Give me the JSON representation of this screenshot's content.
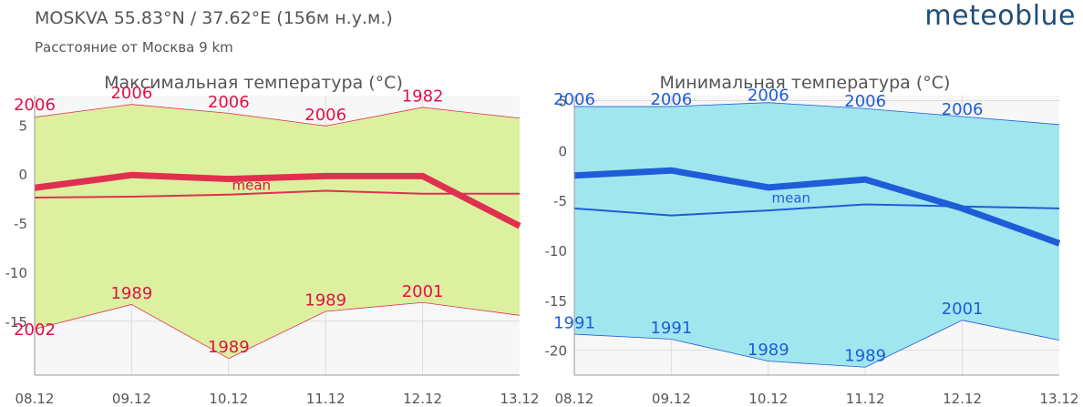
{
  "header": {
    "title": "MOSKVA  55.83°N / 37.62°E (156м н.у.м.)",
    "subtitle": "Расстояние от Москва  9 km",
    "logo": "meteoblue"
  },
  "chart_data": [
    {
      "type": "area",
      "title": "Максимальная температура (°C)",
      "categories": [
        "08.12",
        "09.12",
        "10.12",
        "11.12",
        "12.12",
        "13.12"
      ],
      "yticks": [
        5,
        0,
        -5,
        -10,
        -15
      ],
      "ylim": [
        -20.5,
        8
      ],
      "fill_color": "#dcf0a0",
      "line_color": "#e03050",
      "label_color": "#e0104a",
      "upper": [
        5.8,
        7.1,
        6.2,
        4.9,
        6.8,
        5.7
      ],
      "lower": [
        -15.8,
        -13.3,
        -18.8,
        -14.0,
        -13.1,
        -14.4
      ],
      "mean": [
        -2.4,
        -2.3,
        -2.1,
        -1.7,
        -2.0,
        -2.0
      ],
      "actual": [
        -1.4,
        -0.1,
        -0.5,
        -0.2,
        -0.2,
        -5.3
      ],
      "upper_labels": [
        {
          "x": "08.12",
          "y": 6.5,
          "text": "2006"
        },
        {
          "x": "09.12",
          "y": 7.7,
          "text": "2006"
        },
        {
          "x": "10.12",
          "y": 6.8,
          "text": "2006"
        },
        {
          "x": "11.12",
          "y": 5.5,
          "text": "2006"
        },
        {
          "x": "12.12",
          "y": 7.4,
          "text": "1982"
        }
      ],
      "lower_labels": [
        {
          "x": "08.12",
          "y": -16.4,
          "text": "2002"
        },
        {
          "x": "09.12",
          "y": -12.7,
          "text": "1989"
        },
        {
          "x": "10.12",
          "y": -18.2,
          "text": "1989"
        },
        {
          "x": "11.12",
          "y": -13.4,
          "text": "1989"
        },
        {
          "x": "12.12",
          "y": -12.5,
          "text": "2001"
        }
      ],
      "mean_label": {
        "x": "10.12",
        "y": -1.6,
        "text": "mean"
      }
    },
    {
      "type": "area",
      "title": "Минимальная температура (°C)",
      "categories": [
        "08.12",
        "09.12",
        "10.12",
        "11.12",
        "12.12",
        "13.12"
      ],
      "yticks": [
        5,
        0,
        -5,
        -10,
        -15,
        -20
      ],
      "ylim": [
        -22.5,
        5.5
      ],
      "fill_color": "#a0e6ee",
      "line_color": "#1f5cd8",
      "label_color": "#1f5cd8",
      "upper": [
        4.4,
        4.4,
        4.8,
        4.2,
        3.4,
        2.6
      ],
      "lower": [
        -18.4,
        -18.9,
        -21.1,
        -21.7,
        -17.0,
        -19.0
      ],
      "mean": [
        -5.8,
        -6.5,
        -6.0,
        -5.4,
        -5.6,
        -5.8
      ],
      "actual": [
        -2.5,
        -2.0,
        -3.7,
        -2.9,
        -5.8,
        -9.3
      ],
      "upper_labels": [
        {
          "x": "08.12",
          "y": 4.6,
          "text": "2006"
        },
        {
          "x": "09.12",
          "y": 4.6,
          "text": "2006"
        },
        {
          "x": "10.12",
          "y": 5.0,
          "text": "2006"
        },
        {
          "x": "11.12",
          "y": 4.4,
          "text": "2006"
        },
        {
          "x": "12.12",
          "y": 3.6,
          "text": "2006"
        }
      ],
      "lower_labels": [
        {
          "x": "08.12",
          "y": -17.8,
          "text": "1991"
        },
        {
          "x": "09.12",
          "y": -18.3,
          "text": "1991"
        },
        {
          "x": "10.12",
          "y": -20.5,
          "text": "1989"
        },
        {
          "x": "11.12",
          "y": -21.1,
          "text": "1989"
        },
        {
          "x": "12.12",
          "y": -16.4,
          "text": "2001"
        }
      ],
      "mean_label": {
        "x": "10.12",
        "y": -5.2,
        "text": "mean"
      }
    }
  ]
}
